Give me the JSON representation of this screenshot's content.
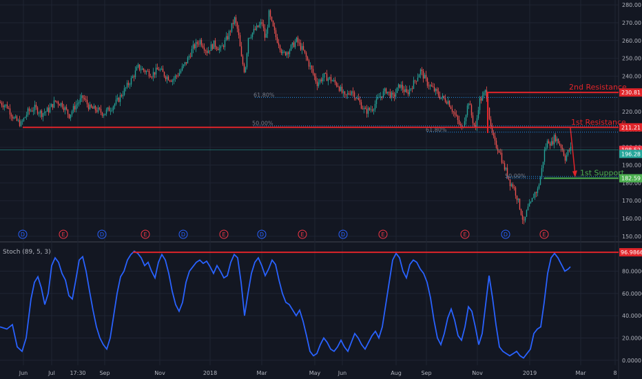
{
  "chart_data": [
    {
      "type": "candlestick",
      "panel": "price",
      "ylim": [
        148,
        282
      ],
      "y_ticks": [
        "280.00",
        "270.00",
        "260.00",
        "250.00",
        "240.00",
        "230.00",
        "220.00",
        "210.00",
        "200.00",
        "190.00",
        "180.00",
        "170.00",
        "160.00",
        "150.00"
      ],
      "x_ticks": [
        "Jun",
        "Jul",
        "17:30",
        "Sep",
        "Nov",
        "2018",
        "Mar",
        "May",
        "Jun",
        "Aug",
        "Sep",
        "Nov",
        "2019",
        "Mar",
        "8"
      ],
      "price_path": [
        [
          0,
          225
        ],
        [
          10,
          223
        ],
        [
          20,
          216
        ],
        [
          30,
          213
        ],
        [
          40,
          220
        ],
        [
          50,
          222
        ],
        [
          60,
          219
        ],
        [
          70,
          221
        ],
        [
          80,
          226
        ],
        [
          90,
          224
        ],
        [
          100,
          218
        ],
        [
          110,
          224
        ],
        [
          120,
          228
        ],
        [
          130,
          222
        ],
        [
          140,
          221
        ],
        [
          150,
          219
        ],
        [
          160,
          222
        ],
        [
          170,
          226
        ],
        [
          180,
          232
        ],
        [
          190,
          238
        ],
        [
          200,
          245
        ],
        [
          210,
          243
        ],
        [
          220,
          241
        ],
        [
          230,
          244
        ],
        [
          240,
          240
        ],
        [
          250,
          238
        ],
        [
          260,
          242
        ],
        [
          270,
          248
        ],
        [
          280,
          256
        ],
        [
          290,
          260
        ],
        [
          300,
          254
        ],
        [
          310,
          258
        ],
        [
          320,
          255
        ],
        [
          330,
          262
        ],
        [
          340,
          272
        ],
        [
          345,
          265
        ],
        [
          350,
          250
        ],
        [
          355,
          242
        ],
        [
          360,
          262
        ],
        [
          370,
          266
        ],
        [
          380,
          270
        ],
        [
          385,
          260
        ],
        [
          390,
          275
        ],
        [
          395,
          268
        ],
        [
          400,
          262
        ],
        [
          405,
          258
        ],
        [
          410,
          252
        ],
        [
          420,
          255
        ],
        [
          430,
          260
        ],
        [
          440,
          254
        ],
        [
          450,
          245
        ],
        [
          460,
          236
        ],
        [
          470,
          240
        ],
        [
          480,
          238
        ],
        [
          490,
          235
        ],
        [
          500,
          228
        ],
        [
          510,
          232
        ],
        [
          520,
          226
        ],
        [
          530,
          220
        ],
        [
          540,
          222
        ],
        [
          550,
          228
        ],
        [
          560,
          232
        ],
        [
          570,
          228
        ],
        [
          580,
          235
        ],
        [
          590,
          230
        ],
        [
          600,
          236
        ],
        [
          610,
          243
        ],
        [
          620,
          236
        ],
        [
          630,
          232
        ],
        [
          640,
          228
        ],
        [
          650,
          226
        ],
        [
          660,
          218
        ],
        [
          670,
          210
        ],
        [
          680,
          226
        ],
        [
          685,
          216
        ],
        [
          690,
          210
        ],
        [
          695,
          226
        ],
        [
          700,
          228
        ],
        [
          705,
          232
        ],
        [
          708,
          224
        ],
        [
          712,
          210
        ],
        [
          718,
          202
        ],
        [
          725,
          198
        ],
        [
          730,
          190
        ],
        [
          735,
          186
        ],
        [
          740,
          180
        ],
        [
          745,
          178
        ],
        [
          750,
          172
        ],
        [
          755,
          165
        ],
        [
          760,
          157
        ],
        [
          765,
          165
        ],
        [
          770,
          168
        ],
        [
          775,
          174
        ],
        [
          780,
          176
        ],
        [
          785,
          185
        ],
        [
          790,
          198
        ],
        [
          795,
          204
        ],
        [
          800,
          202
        ],
        [
          805,
          206
        ],
        [
          810,
          203
        ],
        [
          815,
          200
        ],
        [
          820,
          194
        ],
        [
          825,
          198
        ],
        [
          828,
          199
        ]
      ],
      "horizontal_levels": [
        {
          "value": 230.81,
          "label": "2nd Resistance",
          "axis_label": "230.81",
          "color": "#e0252a"
        },
        {
          "value": 211.21,
          "label": "1st Resistance",
          "axis_label": "211.21",
          "color": "#e0252a"
        },
        {
          "value": 182.59,
          "label": "1st Support",
          "axis_label": "182.59",
          "color": "#4caf50"
        }
      ],
      "price_labels": [
        {
          "value": 198.52,
          "label": "198.52",
          "color": "#f23645"
        },
        {
          "value": 196.28,
          "label": "196.28",
          "color": "#26a69a"
        }
      ],
      "fib_levels": [
        {
          "label": "61.80%",
          "value": 228.0
        },
        {
          "label": "50.00%",
          "value": 212.0
        },
        {
          "label": "61.80%",
          "value": 208.5
        },
        {
          "label": "50.00%",
          "value": 182.5
        }
      ],
      "event_markers": [
        "D",
        "E",
        "D",
        "E",
        "D",
        "E",
        "D",
        "E",
        "D",
        "E",
        "E",
        "D",
        "E"
      ],
      "colors": {
        "up": "#26a69a",
        "down": "#ef5350",
        "background": "#131722",
        "grid": "#1f2433"
      }
    },
    {
      "type": "line",
      "panel": "indicator",
      "title": "Stoch (89, 5, 3)",
      "ylim": [
        -2,
        102
      ],
      "y_ticks": [
        "0.0000",
        "20.0000",
        "40.0000",
        "60.0000",
        "80.0000"
      ],
      "level": {
        "value": 96.9866,
        "label": "96.9866",
        "color": "#e0252a"
      },
      "series": [
        {
          "color": "#2962ff",
          "points": [
            [
              0,
              30
            ],
            [
              10,
              28
            ],
            [
              18,
              32
            ],
            [
              25,
              12
            ],
            [
              32,
              8
            ],
            [
              38,
              20
            ],
            [
              45,
              55
            ],
            [
              50,
              70
            ],
            [
              55,
              75
            ],
            [
              60,
              65
            ],
            [
              65,
              50
            ],
            [
              70,
              60
            ],
            [
              75,
              85
            ],
            [
              80,
              92
            ],
            [
              85,
              88
            ],
            [
              90,
              78
            ],
            [
              95,
              72
            ],
            [
              100,
              58
            ],
            [
              105,
              55
            ],
            [
              110,
              72
            ],
            [
              115,
              90
            ],
            [
              120,
              93
            ],
            [
              125,
              80
            ],
            [
              130,
              62
            ],
            [
              135,
              45
            ],
            [
              140,
              30
            ],
            [
              145,
              20
            ],
            [
              150,
              14
            ],
            [
              155,
              10
            ],
            [
              160,
              20
            ],
            [
              165,
              40
            ],
            [
              170,
              60
            ],
            [
              175,
              75
            ],
            [
              180,
              80
            ],
            [
              185,
              90
            ],
            [
              190,
              95
            ],
            [
              195,
              98
            ],
            [
              200,
              96
            ],
            [
              205,
              92
            ],
            [
              210,
              85
            ],
            [
              215,
              88
            ],
            [
              220,
              80
            ],
            [
              225,
              74
            ],
            [
              230,
              88
            ],
            [
              235,
              95
            ],
            [
              240,
              90
            ],
            [
              245,
              78
            ],
            [
              250,
              62
            ],
            [
              255,
              50
            ],
            [
              260,
              44
            ],
            [
              265,
              52
            ],
            [
              270,
              70
            ],
            [
              275,
              80
            ],
            [
              280,
              84
            ],
            [
              285,
              88
            ],
            [
              290,
              90
            ],
            [
              295,
              87
            ],
            [
              300,
              89
            ],
            [
              305,
              84
            ],
            [
              310,
              78
            ],
            [
              315,
              85
            ],
            [
              320,
              80
            ],
            [
              325,
              74
            ],
            [
              330,
              76
            ],
            [
              335,
              88
            ],
            [
              340,
              95
            ],
            [
              345,
              92
            ],
            [
              350,
              70
            ],
            [
              355,
              40
            ],
            [
              360,
              60
            ],
            [
              365,
              78
            ],
            [
              370,
              88
            ],
            [
              375,
              92
            ],
            [
              380,
              85
            ],
            [
              385,
              76
            ],
            [
              390,
              82
            ],
            [
              395,
              90
            ],
            [
              400,
              86
            ],
            [
              405,
              72
            ],
            [
              410,
              60
            ],
            [
              415,
              52
            ],
            [
              420,
              50
            ],
            [
              425,
              45
            ],
            [
              430,
              40
            ],
            [
              435,
              45
            ],
            [
              440,
              35
            ],
            [
              445,
              22
            ],
            [
              450,
              8
            ],
            [
              455,
              4
            ],
            [
              460,
              6
            ],
            [
              465,
              14
            ],
            [
              470,
              20
            ],
            [
              475,
              16
            ],
            [
              480,
              10
            ],
            [
              485,
              8
            ],
            [
              490,
              12
            ],
            [
              495,
              18
            ],
            [
              500,
              12
            ],
            [
              505,
              8
            ],
            [
              510,
              16
            ],
            [
              515,
              24
            ],
            [
              520,
              20
            ],
            [
              525,
              14
            ],
            [
              530,
              10
            ],
            [
              535,
              16
            ],
            [
              540,
              22
            ],
            [
              545,
              26
            ],
            [
              550,
              20
            ],
            [
              555,
              30
            ],
            [
              560,
              50
            ],
            [
              565,
              70
            ],
            [
              570,
              90
            ],
            [
              575,
              96
            ],
            [
              580,
              92
            ],
            [
              585,
              80
            ],
            [
              590,
              74
            ],
            [
              595,
              86
            ],
            [
              600,
              90
            ],
            [
              605,
              88
            ],
            [
              610,
              82
            ],
            [
              615,
              78
            ],
            [
              620,
              70
            ],
            [
              625,
              56
            ],
            [
              630,
              36
            ],
            [
              635,
              20
            ],
            [
              640,
              14
            ],
            [
              645,
              24
            ],
            [
              650,
              38
            ],
            [
              655,
              46
            ],
            [
              660,
              36
            ],
            [
              665,
              22
            ],
            [
              670,
              18
            ],
            [
              675,
              30
            ],
            [
              680,
              48
            ],
            [
              685,
              44
            ],
            [
              690,
              30
            ],
            [
              695,
              14
            ],
            [
              700,
              24
            ],
            [
              705,
              50
            ],
            [
              710,
              76
            ],
            [
              715,
              56
            ],
            [
              720,
              32
            ],
            [
              725,
              12
            ],
            [
              730,
              8
            ],
            [
              735,
              6
            ],
            [
              740,
              4
            ],
            [
              745,
              6
            ],
            [
              750,
              8
            ],
            [
              755,
              4
            ],
            [
              760,
              2
            ],
            [
              765,
              6
            ],
            [
              770,
              10
            ],
            [
              775,
              24
            ],
            [
              780,
              28
            ],
            [
              785,
              30
            ],
            [
              790,
              52
            ],
            [
              795,
              78
            ],
            [
              800,
              92
            ],
            [
              805,
              96
            ],
            [
              810,
              92
            ],
            [
              815,
              86
            ],
            [
              820,
              80
            ],
            [
              825,
              82
            ],
            [
              828,
              84
            ]
          ]
        }
      ]
    }
  ]
}
